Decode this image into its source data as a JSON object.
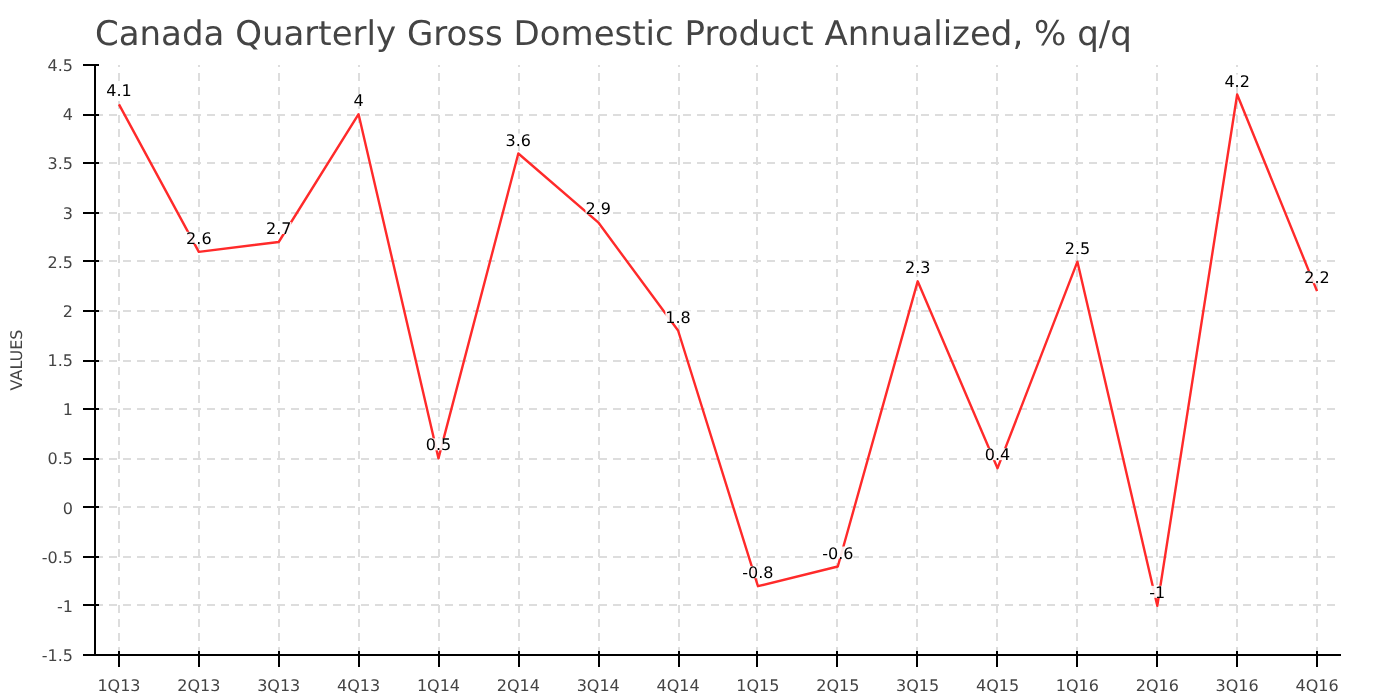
{
  "chart_data": {
    "type": "line",
    "title": "Canada Quarterly Gross Domestic Product Annualized, % q/q",
    "ylabel": "VALUES",
    "categories": [
      "1Q13",
      "2Q13",
      "3Q13",
      "4Q13",
      "1Q14",
      "2Q14",
      "3Q14",
      "4Q14",
      "1Q15",
      "2Q15",
      "3Q15",
      "4Q15",
      "1Q16",
      "2Q16",
      "3Q16",
      "4Q16"
    ],
    "series": [
      {
        "color": "#ff2a2a",
        "values": [
          4.1,
          2.6,
          2.7,
          4,
          0.5,
          3.6,
          2.9,
          1.8,
          -0.8,
          -0.6,
          2.3,
          0.4,
          2.5,
          -1,
          4.2,
          2.2
        ]
      }
    ],
    "ylim": [
      -1.5,
      4.5
    ],
    "yticks": [
      -1.5,
      -1,
      -0.5,
      0,
      0.5,
      1,
      1.5,
      2,
      2.5,
      3,
      3.5,
      4,
      4.5
    ],
    "grid": true,
    "data_labels": true,
    "marker": "none",
    "line_style": "solid"
  }
}
